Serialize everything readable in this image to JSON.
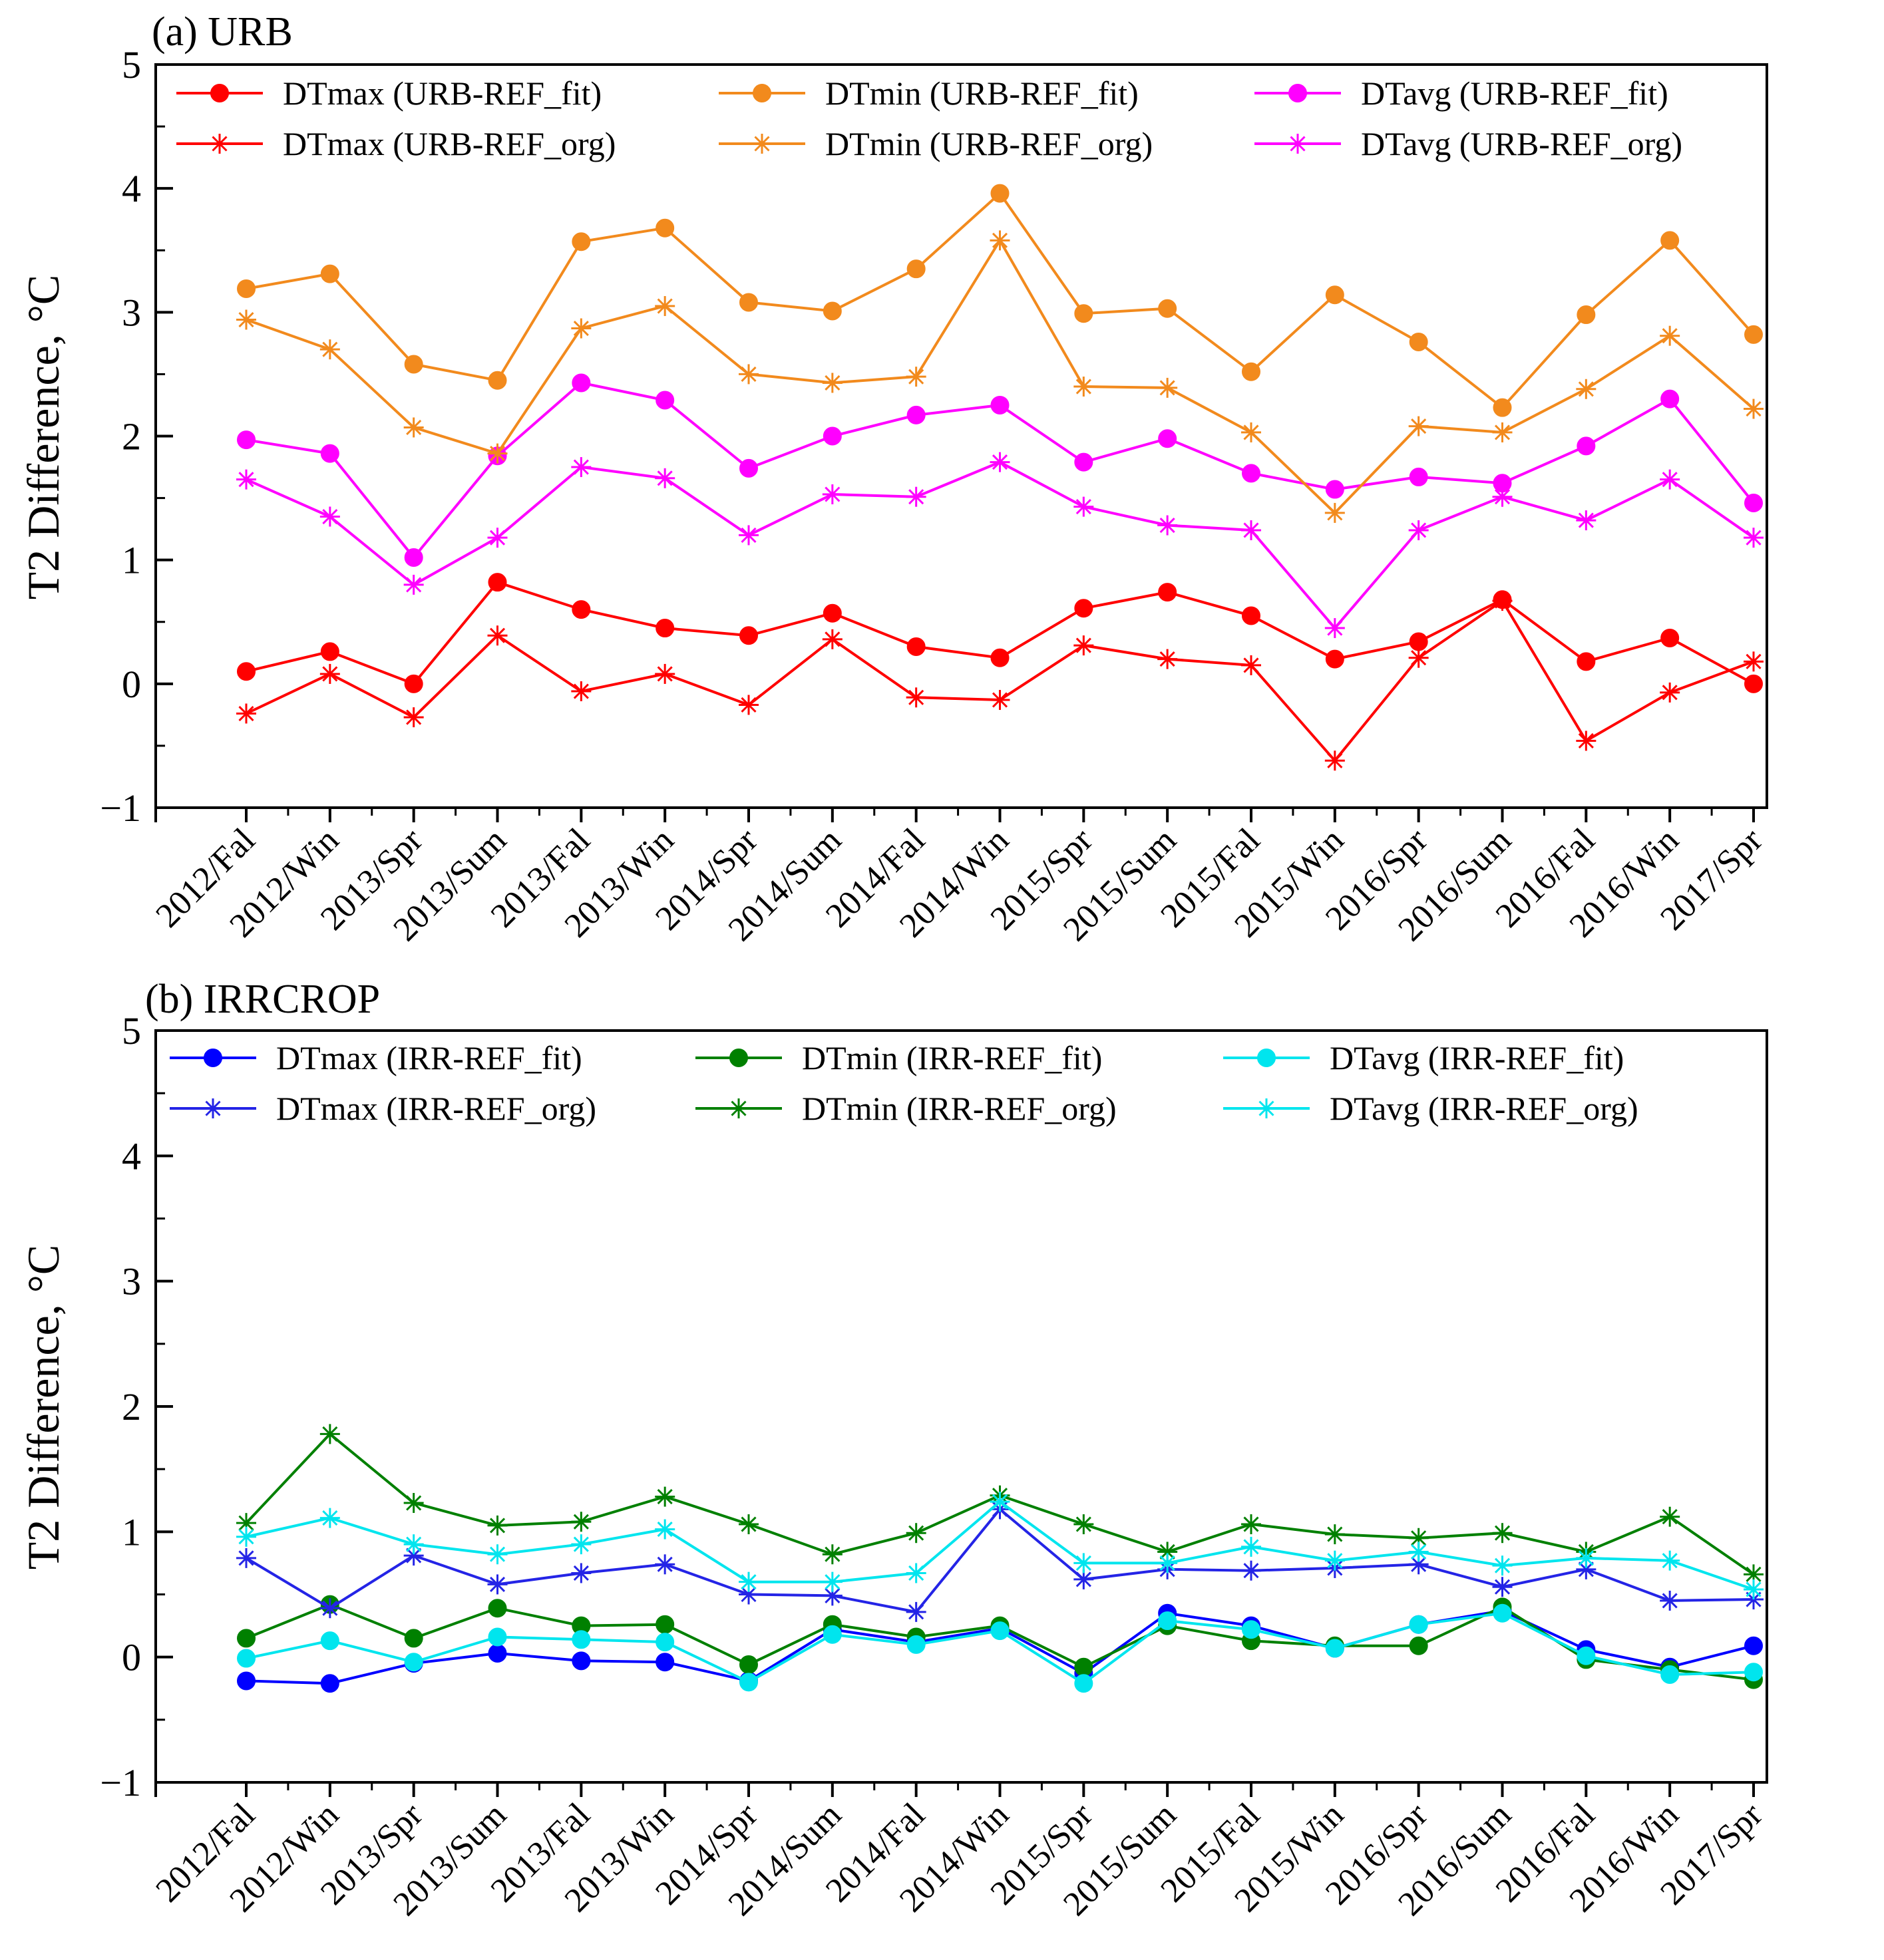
{
  "chart_data": [
    {
      "type": "line",
      "title": "(a) URB",
      "xlabel": "",
      "ylabel": "T2 Difference, °C",
      "ylim": [
        -1,
        5
      ],
      "yticks": [
        -1,
        0,
        1,
        2,
        3,
        4,
        5
      ],
      "yticklabels": [
        "−1",
        "0",
        "1",
        "2",
        "3",
        "4",
        "5"
      ],
      "legend_position": "top",
      "categories": [
        "2012/Fal",
        "2012/Win",
        "2013/Spr",
        "2013/Sum",
        "2013/Fal",
        "2013/Win",
        "2014/Spr",
        "2014/Sum",
        "2014/Fal",
        "2014/Win",
        "2015/Spr",
        "2015/Sum",
        "2015/Fal",
        "2015/Win",
        "2016/Spr",
        "2016/Sum",
        "2016/Fal",
        "2016/Win",
        "2017/Spr"
      ],
      "series": [
        {
          "name": "DTmax (URB-REF_fit)",
          "color": "#ff0000",
          "marker": "circle",
          "values": [
            0.1,
            0.26,
            0.0,
            0.82,
            0.6,
            0.45,
            0.39,
            0.57,
            0.3,
            0.21,
            0.61,
            0.74,
            0.55,
            0.2,
            0.34,
            0.68,
            0.18,
            0.37,
            0.0
          ]
        },
        {
          "name": "DTmin (URB-REF_fit)",
          "color": "#f28a1d",
          "marker": "circle",
          "values": [
            3.19,
            3.31,
            2.58,
            2.45,
            3.57,
            3.68,
            3.08,
            3.01,
            3.35,
            3.96,
            2.99,
            3.03,
            2.52,
            3.14,
            2.76,
            2.23,
            2.98,
            3.58,
            2.82
          ]
        },
        {
          "name": "DTavg (URB-REF_fit)",
          "color": "#ff00ff",
          "marker": "circle",
          "values": [
            1.97,
            1.86,
            1.02,
            1.84,
            2.43,
            2.29,
            1.74,
            2.0,
            2.17,
            2.25,
            1.79,
            1.98,
            1.7,
            1.57,
            1.67,
            1.62,
            1.92,
            2.3,
            1.46
          ]
        },
        {
          "name": "DTmax (URB-REF_org)",
          "color": "#ff0000",
          "marker": "star",
          "values": [
            -0.24,
            0.08,
            -0.27,
            0.39,
            -0.06,
            0.08,
            -0.17,
            0.36,
            -0.11,
            -0.13,
            0.31,
            0.2,
            0.15,
            -0.62,
            0.21,
            0.67,
            -0.46,
            -0.07,
            0.18
          ]
        },
        {
          "name": "DTmin (URB-REF_org)",
          "color": "#f28a1d",
          "marker": "star",
          "values": [
            2.94,
            2.7,
            2.07,
            1.86,
            2.87,
            3.05,
            2.5,
            2.43,
            2.48,
            3.58,
            2.4,
            2.39,
            2.03,
            1.38,
            2.08,
            2.03,
            2.38,
            2.81,
            2.22
          ]
        },
        {
          "name": "DTavg (URB-REF_org)",
          "color": "#ff00ff",
          "marker": "star",
          "values": [
            1.65,
            1.35,
            0.8,
            1.18,
            1.75,
            1.66,
            1.2,
            1.53,
            1.51,
            1.79,
            1.43,
            1.28,
            1.24,
            0.45,
            1.24,
            1.51,
            1.32,
            1.65,
            1.18
          ]
        }
      ]
    },
    {
      "type": "line",
      "title": "(b) IRRCROP",
      "xlabel": "",
      "ylabel": "T2 Difference, °C",
      "ylim": [
        -1,
        5
      ],
      "yticks": [
        -1,
        0,
        1,
        2,
        3,
        4,
        5
      ],
      "yticklabels": [
        "−1",
        "0",
        "1",
        "2",
        "3",
        "4",
        "5"
      ],
      "legend_position": "top",
      "categories": [
        "2012/Fal",
        "2012/Win",
        "2013/Spr",
        "2013/Sum",
        "2013/Fal",
        "2013/Win",
        "2014/Spr",
        "2014/Sum",
        "2014/Fal",
        "2014/Win",
        "2015/Spr",
        "2015/Sum",
        "2015/Fal",
        "2015/Win",
        "2016/Spr",
        "2016/Sum",
        "2016/Fal",
        "2016/Win",
        "2017/Spr"
      ],
      "series": [
        {
          "name": "DTmax (IRR-REF_fit)",
          "color": "#0000ff",
          "marker": "circle",
          "values": [
            -0.19,
            -0.21,
            -0.05,
            0.03,
            -0.03,
            -0.04,
            -0.19,
            0.22,
            0.12,
            0.23,
            -0.13,
            0.35,
            0.25,
            0.07,
            0.26,
            0.37,
            0.06,
            -0.08,
            0.09
          ]
        },
        {
          "name": "DTmin (IRR-REF_fit)",
          "color": "#008000",
          "marker": "circle",
          "values": [
            0.15,
            0.42,
            0.15,
            0.39,
            0.25,
            0.26,
            -0.06,
            0.26,
            0.16,
            0.25,
            -0.08,
            0.25,
            0.13,
            0.09,
            0.09,
            0.4,
            -0.02,
            -0.1,
            -0.18
          ]
        },
        {
          "name": "DTavg (IRR-REF_fit)",
          "color": "#00e5ee",
          "marker": "circle",
          "values": [
            -0.01,
            0.13,
            -0.04,
            0.16,
            0.14,
            0.12,
            -0.2,
            0.18,
            0.1,
            0.21,
            -0.21,
            0.29,
            0.22,
            0.07,
            0.26,
            0.35,
            0.01,
            -0.14,
            -0.12
          ]
        },
        {
          "name": "DTmax (IRR-REF_org)",
          "color": "#2424e6",
          "marker": "star",
          "values": [
            0.79,
            0.39,
            0.81,
            0.58,
            0.67,
            0.74,
            0.5,
            0.49,
            0.36,
            1.18,
            0.62,
            0.7,
            0.69,
            0.71,
            0.74,
            0.56,
            0.7,
            0.45,
            0.46
          ]
        },
        {
          "name": "DTmin (IRR-REF_org)",
          "color": "#008000",
          "marker": "star",
          "values": [
            1.07,
            1.78,
            1.23,
            1.05,
            1.08,
            1.28,
            1.06,
            0.82,
            0.99,
            1.29,
            1.06,
            0.84,
            1.06,
            0.98,
            0.95,
            0.99,
            0.84,
            1.12,
            0.66
          ]
        },
        {
          "name": "DTavg (IRR-REF_org)",
          "color": "#00e5ee",
          "marker": "star",
          "values": [
            0.96,
            1.11,
            0.9,
            0.82,
            0.9,
            1.02,
            0.6,
            0.6,
            0.67,
            1.24,
            0.75,
            0.75,
            0.88,
            0.77,
            0.84,
            0.73,
            0.79,
            0.77,
            0.54
          ]
        }
      ]
    }
  ]
}
